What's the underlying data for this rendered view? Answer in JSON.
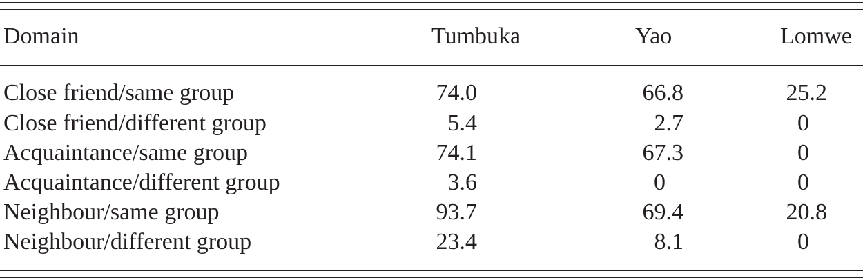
{
  "table": {
    "header": [
      "Domain",
      "Tumbuka",
      "Yao",
      "Lomwe"
    ],
    "rows": [
      [
        "Close friend/same group",
        "74.0",
        "66.8",
        "25.2"
      ],
      [
        "Close friend/different group",
        "5.4",
        "2.7",
        "0"
      ],
      [
        "Acquaintance/same group",
        "74.1",
        "67.3",
        "0"
      ],
      [
        "Acquaintance/different group",
        "3.6",
        "0",
        "0"
      ],
      [
        "Neighbour/same group",
        "93.7",
        "69.4",
        "20.8"
      ],
      [
        "Neighbour/different group",
        "23.4",
        "8.1",
        "0"
      ]
    ]
  }
}
